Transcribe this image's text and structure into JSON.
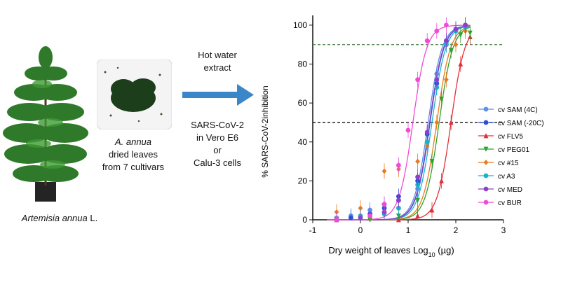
{
  "left_panel": {
    "plant_caption_species": "Artemisia annua",
    "plant_caption_suffix": " L.",
    "leaves_caption": [
      "A. annua",
      "dried leaves",
      "from 7 cultivars"
    ],
    "method_top": [
      "Hot water",
      "extract"
    ],
    "method_bottom": [
      "SARS-CoV-2",
      "in Vero E6",
      "or",
      "Calu-3 cells"
    ]
  },
  "colors": {
    "arrow": "#3a86c8",
    "leaf_green": "#2f7a2a",
    "dark_green": "#1c3e1a"
  },
  "chart_data": {
    "type": "scatter",
    "title": "",
    "xlabel": "Dry weight of leaves Log",
    "xlabel_sub": "10",
    "xlabel_unit": " (µg)",
    "ylabel": "% SARS-CoV-2inhibition",
    "xlim": [
      -1,
      3
    ],
    "ylim": [
      0,
      105
    ],
    "xticks": [
      -1,
      0,
      1,
      2,
      3
    ],
    "yticks": [
      0,
      20,
      40,
      60,
      80,
      100
    ],
    "reference_lines": [
      {
        "y": 90,
        "style": "dashed",
        "color": "#5a8a5a"
      },
      {
        "y": 50,
        "style": "dashed",
        "color": "#111111"
      }
    ],
    "legend_position": "right",
    "series": [
      {
        "name": "cv SAM (4C)",
        "color": "#5b8fe8",
        "marker": "circle",
        "x": [
          -0.5,
          -0.2,
          0.2,
          0.5,
          0.8,
          1.2,
          1.4,
          1.6,
          1.8,
          2.0,
          2.2
        ],
        "values": [
          1,
          2,
          5,
          8,
          10,
          16,
          40,
          75,
          92,
          98,
          100
        ],
        "ec50": 1.42
      },
      {
        "name": "cv SAM (-20C)",
        "color": "#2a4fd6",
        "marker": "circle",
        "x": [
          -0.5,
          -0.2,
          0.2,
          0.5,
          0.8,
          1.2,
          1.4,
          1.6,
          1.8,
          2.0,
          2.2
        ],
        "values": [
          0,
          1,
          3,
          6,
          12,
          20,
          44,
          70,
          90,
          97,
          100
        ],
        "ec50": 1.46
      },
      {
        "name": "cv FLV5",
        "color": "#e0303a",
        "marker": "triangle",
        "x": [
          -0.5,
          0.2,
          0.8,
          1.2,
          1.5,
          1.7,
          1.9,
          2.1,
          2.3
        ],
        "values": [
          0,
          1,
          0,
          2,
          5,
          20,
          50,
          80,
          94
        ],
        "ec50": 1.9
      },
      {
        "name": "cv PEG01",
        "color": "#2aa52a",
        "marker": "triangle-down",
        "x": [
          -0.5,
          0.2,
          0.8,
          1.2,
          1.5,
          1.7,
          1.9,
          2.1,
          2.3
        ],
        "values": [
          0,
          0,
          2,
          10,
          30,
          62,
          87,
          95,
          96
        ],
        "ec50": 1.65
      },
      {
        "name": "cv #15",
        "color": "#e87a20",
        "marker": "diamond",
        "x": [
          -0.5,
          0.0,
          0.5,
          0.8,
          1.2,
          1.4,
          1.6,
          1.8,
          2.0,
          2.2
        ],
        "values": [
          4,
          6,
          25,
          26,
          30,
          38,
          50,
          72,
          90,
          97
        ],
        "ec50": 1.6
      },
      {
        "name": "cv A3",
        "color": "#19b3c8",
        "marker": "circle",
        "x": [
          -0.5,
          0.0,
          0.5,
          0.8,
          1.2,
          1.4,
          1.6,
          1.8,
          2.0,
          2.2
        ],
        "values": [
          0,
          2,
          3,
          6,
          18,
          40,
          68,
          90,
          97,
          99
        ],
        "ec50": 1.5
      },
      {
        "name": "cv MED",
        "color": "#8d3fc7",
        "marker": "circle",
        "x": [
          -0.5,
          0.0,
          0.5,
          0.8,
          1.2,
          1.4,
          1.6,
          1.8,
          2.0,
          2.2
        ],
        "values": [
          0,
          1,
          4,
          10,
          22,
          45,
          72,
          92,
          98,
          100
        ],
        "ec50": 1.45
      },
      {
        "name": "cv BUR",
        "color": "#f04bd8",
        "marker": "circle",
        "x": [
          -0.5,
          0.2,
          0.5,
          0.8,
          1.0,
          1.2,
          1.4,
          1.6,
          1.8
        ],
        "values": [
          0,
          2,
          8,
          28,
          46,
          72,
          92,
          97,
          100
        ],
        "ec50": 1.1
      }
    ]
  }
}
